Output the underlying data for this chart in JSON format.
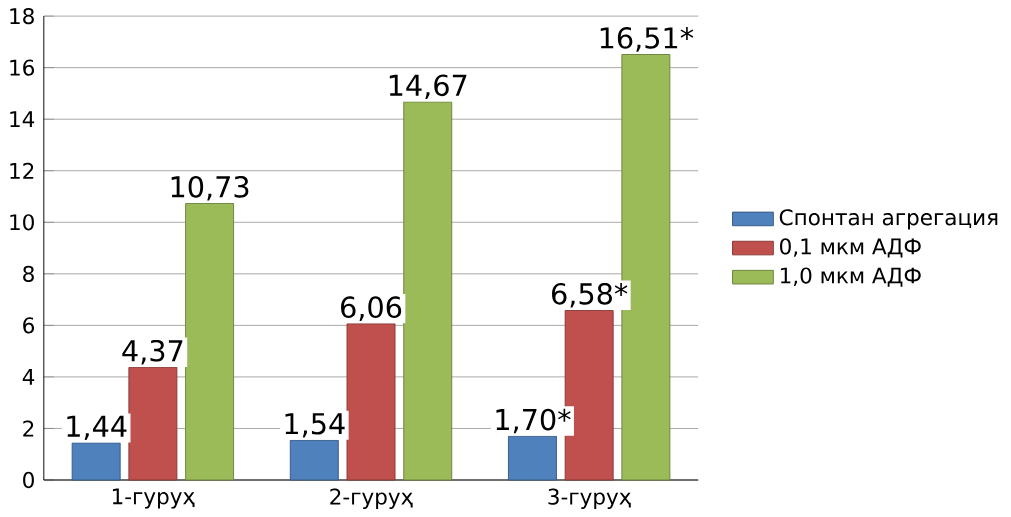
{
  "chart_data": {
    "type": "bar",
    "categories": [
      "1-гуруҳ",
      "2-гуруҳ",
      "3-гуруҳ"
    ],
    "series": [
      {
        "name": "Спонтан агрегация",
        "color": "#4f81bd",
        "values": [
          1.44,
          1.54,
          1.7
        ],
        "value_labels": [
          "1,44",
          "1,54",
          "1,70*"
        ]
      },
      {
        "name": "0,1 мкм АДФ",
        "color": "#c0504d",
        "values": [
          4.37,
          6.06,
          6.58
        ],
        "value_labels": [
          "4,37",
          "6,06",
          "6,58*"
        ]
      },
      {
        "name": "1,0 мкм АДФ",
        "color": "#9bbb59",
        "values": [
          10.73,
          14.67,
          16.51
        ],
        "value_labels": [
          "10,73",
          "14,67",
          "16,51*"
        ]
      }
    ],
    "ylim": [
      0,
      18
    ],
    "yticks": [
      0,
      2,
      4,
      6,
      8,
      10,
      12,
      14,
      16,
      18
    ],
    "grid": "y",
    "legend": "right"
  }
}
